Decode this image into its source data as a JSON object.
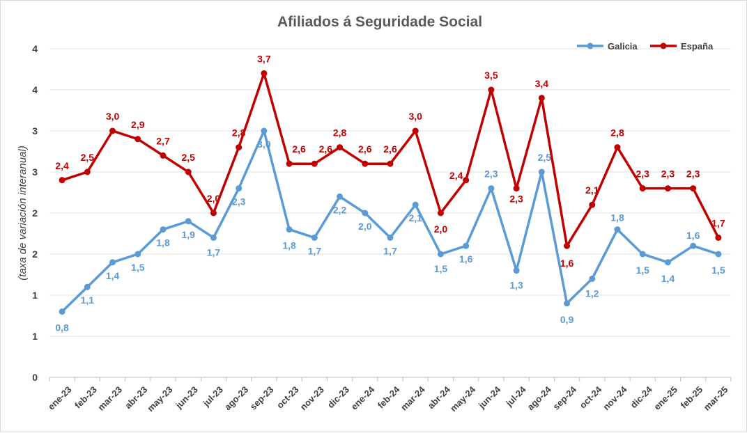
{
  "chart_data": {
    "type": "line",
    "title": "Afiliados á Seguridade Social",
    "ylabel": "(taxa de variación interanual)",
    "xlabel": "",
    "yticks": [
      "0",
      "1",
      "1",
      "2",
      "2",
      "3",
      "3",
      "4",
      "4"
    ],
    "ylim": [
      0,
      4
    ],
    "grid": true,
    "legend": "top-right",
    "categories": [
      "ene-23",
      "feb-23",
      "mar-23",
      "abr-23",
      "may-23",
      "jun-23",
      "jul-23",
      "ago-23",
      "sep-23",
      "oct-23",
      "nov-23",
      "dic-23",
      "ene-24",
      "feb-24",
      "mar-24",
      "abr-24",
      "may-24",
      "jun-24",
      "jul-24",
      "ago-24",
      "sep-24",
      "oct-24",
      "nov-24",
      "dic-24",
      "ene-25",
      "feb-25",
      "mar-25"
    ],
    "series": [
      {
        "name": "Galicia",
        "color": "#5b9bd5",
        "values": [
          0.8,
          1.1,
          1.4,
          1.5,
          1.8,
          1.9,
          1.7,
          2.3,
          3.0,
          1.8,
          1.7,
          2.2,
          2.0,
          1.7,
          2.1,
          1.5,
          1.6,
          2.3,
          1.3,
          2.5,
          0.9,
          1.2,
          1.8,
          1.5,
          1.4,
          1.6,
          1.5
        ],
        "labels": [
          "0,8",
          "1,1",
          "1,4",
          "1,5",
          "1,8",
          "1,9",
          "1,7",
          "2,3",
          "3,0",
          "1,8",
          "1,7",
          "2,2",
          "2,0",
          "1,7",
          "2,1",
          "1,5",
          "1,6",
          "2,3",
          "1,3",
          "2,5",
          "0,9",
          "1,2",
          "1,8",
          "1,5",
          "1,4",
          "1,6",
          "1,5"
        ]
      },
      {
        "name": "España",
        "color": "#c00000",
        "values": [
          2.4,
          2.5,
          3.0,
          2.9,
          2.7,
          2.5,
          2.0,
          2.8,
          3.7,
          2.6,
          2.6,
          2.8,
          2.6,
          2.6,
          3.0,
          2.0,
          2.4,
          3.5,
          2.3,
          3.4,
          1.6,
          2.1,
          2.8,
          2.3,
          2.3,
          2.3,
          1.7
        ],
        "labels": [
          "2,4",
          "2,5",
          "3,0",
          "2,9",
          "2,7",
          "2,5",
          "2,0",
          "2,8",
          "3,7",
          "2,6",
          "2,6",
          "2,8",
          "2,6",
          "2,6",
          "3,0",
          "2,0",
          "2,4",
          "3,5",
          "2,3",
          "3,4",
          "1,6",
          "2,1",
          "2,8",
          "2,3",
          "2,3",
          "2,3",
          "1,7"
        ]
      }
    ]
  }
}
